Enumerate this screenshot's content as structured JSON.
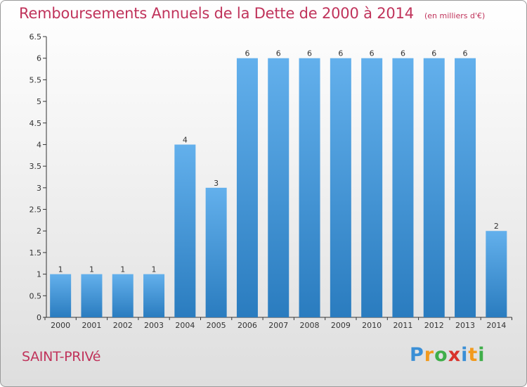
{
  "title": "Remboursements Annuels de la Dette de 2000 à 2014",
  "unit": "(en milliers d'€)",
  "commune": "SAINT-PRIVé",
  "brand": {
    "letters": [
      "P",
      "r",
      "o",
      "x",
      "i",
      "t",
      "i"
    ],
    "colors": [
      "#3a8fd6",
      "#f29a1d",
      "#3fae49",
      "#d9332c",
      "#3a8fd6",
      "#f29a1d",
      "#3fae49"
    ]
  },
  "colors": {
    "title": "#c0335b",
    "bar_light": "#63b0ec",
    "bar_dark": "#2a7cbf",
    "axis": "#333333",
    "grid": "#cfcfcf"
  },
  "chart_data": {
    "type": "bar",
    "categories": [
      "2000",
      "2001",
      "2002",
      "2003",
      "2004",
      "2005",
      "2006",
      "2007",
      "2008",
      "2009",
      "2010",
      "2011",
      "2012",
      "2013",
      "2014"
    ],
    "values": [
      1,
      1,
      1,
      1,
      4,
      3,
      6,
      6,
      6,
      6,
      6,
      6,
      6,
      6,
      2
    ],
    "value_labels": [
      "1",
      "1",
      "1",
      "1",
      "4",
      "3",
      "6",
      "6",
      "6",
      "6",
      "6",
      "6",
      "6",
      "6",
      "2"
    ],
    "y_ticks": [
      "0",
      "0.5",
      "1",
      "1.5",
      "2",
      "2.5",
      "3",
      "3.5",
      "4",
      "4.5",
      "5",
      "5.5",
      "6",
      "6.5"
    ],
    "ylim": [
      0,
      6.5
    ],
    "xlabel": "",
    "ylabel": "",
    "grid": false,
    "legend": "none"
  }
}
